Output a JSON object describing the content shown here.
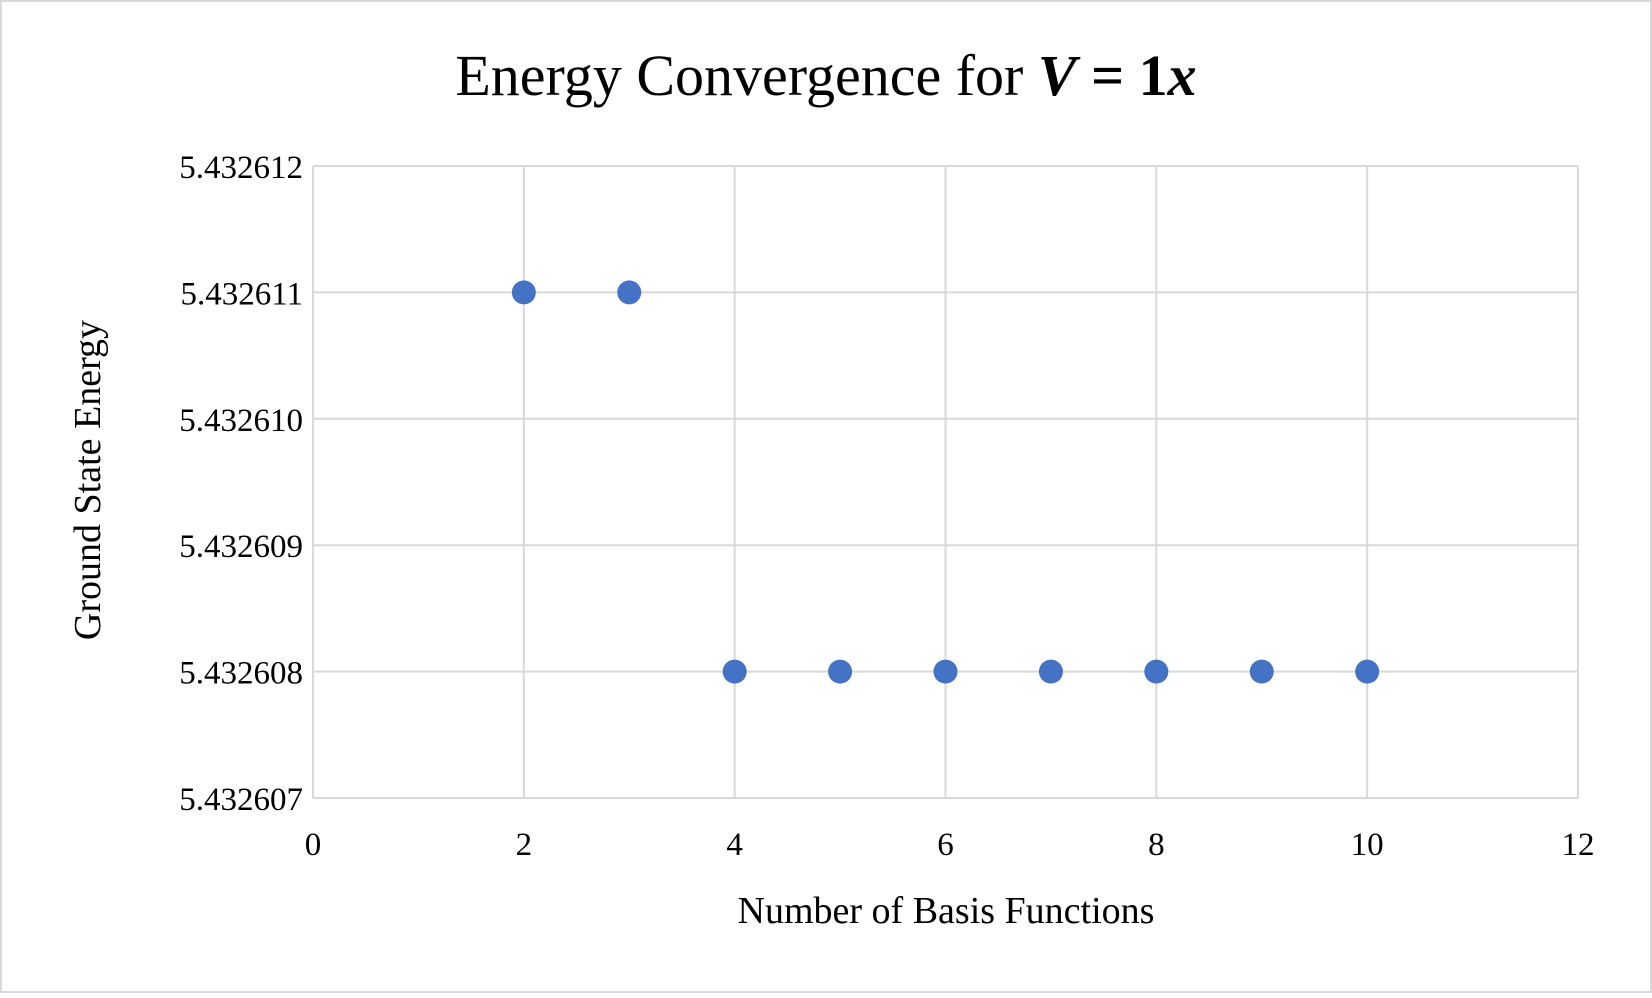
{
  "chart_data": {
    "type": "scatter",
    "title_parts": [
      {
        "text": "Energy Convergence for ",
        "style": "normal"
      },
      {
        "text": "V",
        "style": "bold-italic"
      },
      {
        "text": " = 1",
        "style": "bold"
      },
      {
        "text": "x",
        "style": "bold-italic"
      }
    ],
    "xlabel": "Number of Basis Functions",
    "ylabel": "Ground State Energy",
    "xlim": [
      0,
      12
    ],
    "ylim": [
      5.432607,
      5.432612
    ],
    "x_ticks": [
      "0",
      "2",
      "4",
      "6",
      "8",
      "10",
      "12"
    ],
    "y_ticks": [
      "5.432607",
      "5.432608",
      "5.432609",
      "5.432610",
      "5.432611",
      "5.432612"
    ],
    "grid": true,
    "series": [
      {
        "color": "#4472C4",
        "points": [
          {
            "x": 2,
            "y": 5.432611
          },
          {
            "x": 3,
            "y": 5.432611
          },
          {
            "x": 4,
            "y": 5.432608
          },
          {
            "x": 5,
            "y": 5.432608
          },
          {
            "x": 6,
            "y": 5.432608
          },
          {
            "x": 7,
            "y": 5.432608
          },
          {
            "x": 8,
            "y": 5.432608
          },
          {
            "x": 9,
            "y": 5.432608
          },
          {
            "x": 10,
            "y": 5.432608
          }
        ]
      }
    ]
  }
}
